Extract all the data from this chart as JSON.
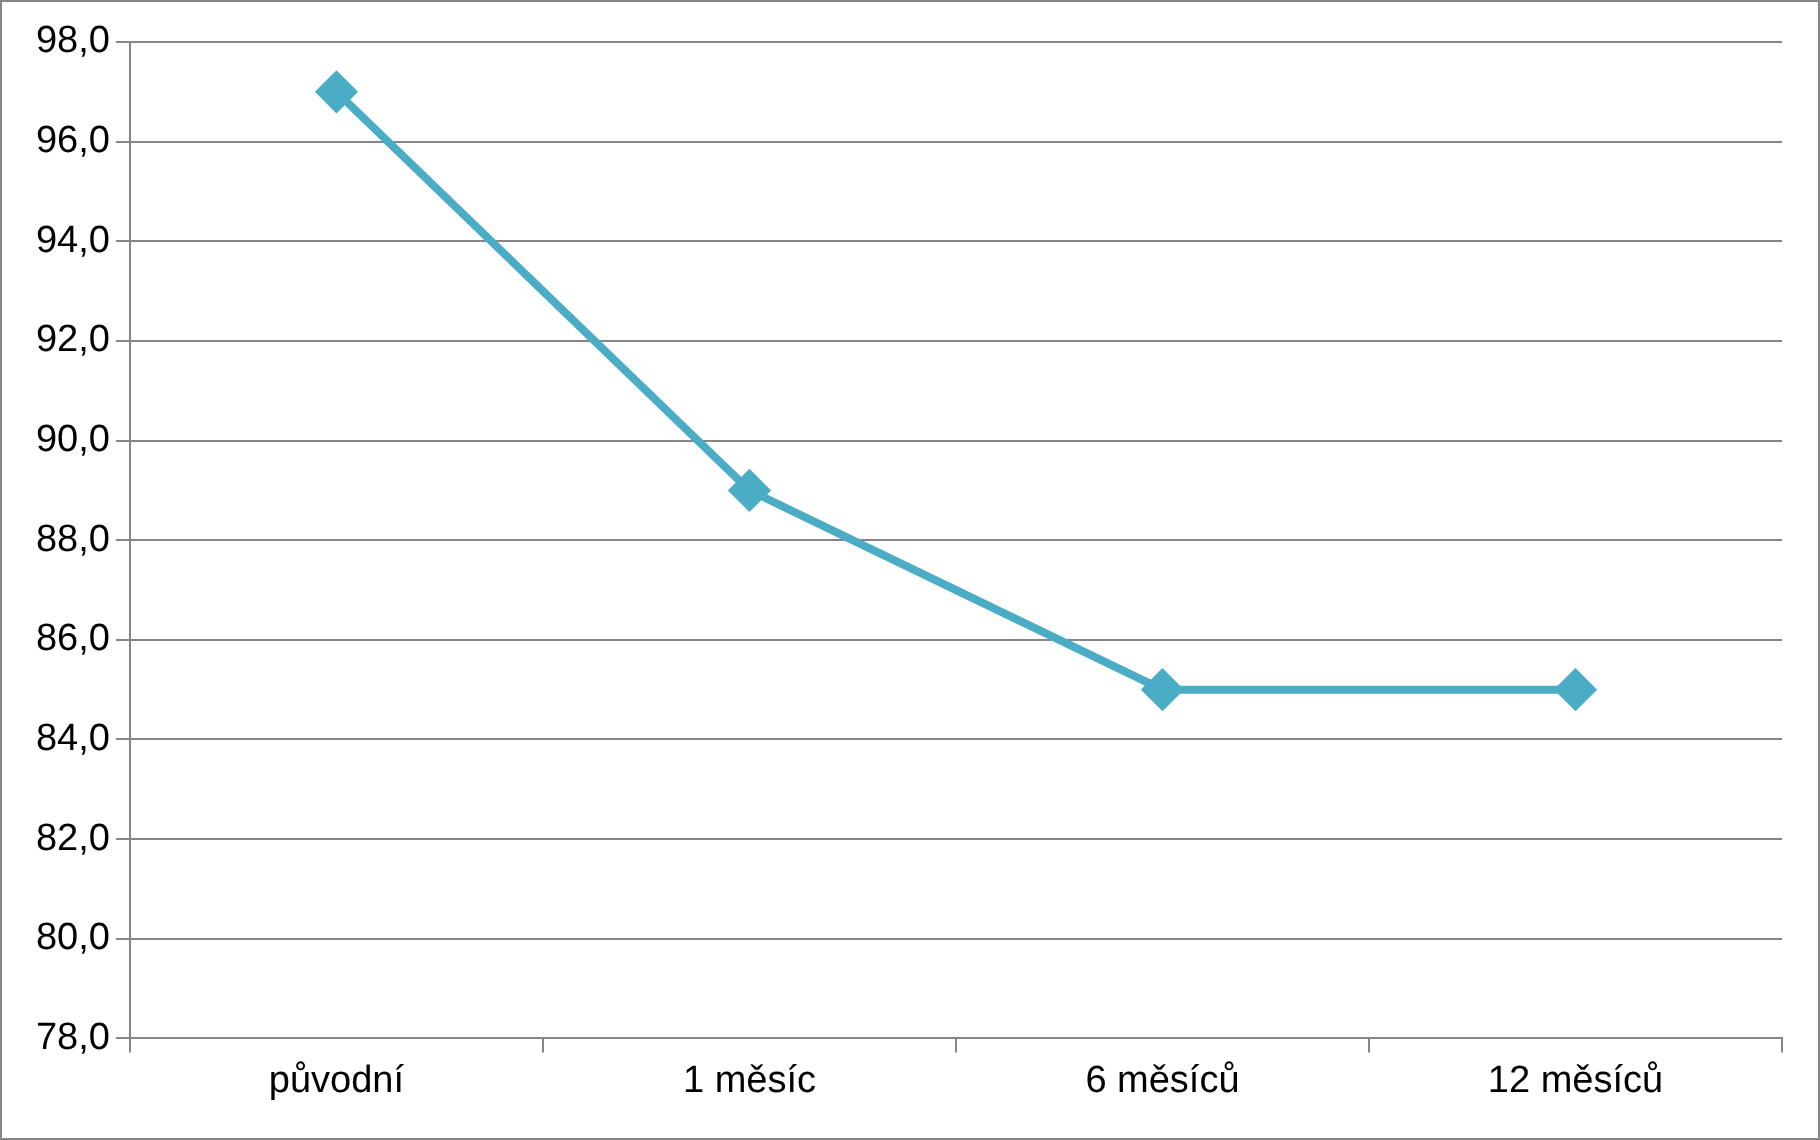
{
  "chart_data": {
    "type": "line",
    "categories": [
      "původní",
      "1 měsíc",
      "6 měsíců",
      "12 měsíců"
    ],
    "series": [
      {
        "color": "#4bacc6",
        "values": [
          97.0,
          89.0,
          85.0,
          85.0
        ]
      }
    ],
    "ylim": [
      78,
      98
    ],
    "yticks": [
      {
        "value": 78,
        "label": "78,0"
      },
      {
        "value": 80,
        "label": "80,0"
      },
      {
        "value": 82,
        "label": "82,0"
      },
      {
        "value": 84,
        "label": "84,0"
      },
      {
        "value": 86,
        "label": "86,0"
      },
      {
        "value": 88,
        "label": "88,0"
      },
      {
        "value": 90,
        "label": "90,0"
      },
      {
        "value": 92,
        "label": "92,0"
      },
      {
        "value": 94,
        "label": "94,0"
      },
      {
        "value": 96,
        "label": "96,0"
      },
      {
        "value": 98,
        "label": "98,0"
      }
    ],
    "grid": "y",
    "legend": false,
    "marker": "diamond",
    "line_style": "solid"
  }
}
